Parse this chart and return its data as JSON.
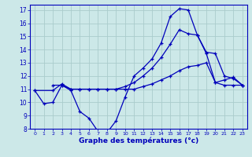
{
  "title": "Graphe des températures (°c)",
  "bg_color": "#cce8e8",
  "grid_color": "#aacccc",
  "line_color": "#0000bb",
  "xlim": [
    -0.5,
    23.5
  ],
  "ylim": [
    8,
    17.4
  ],
  "yticks": [
    8,
    9,
    10,
    11,
    12,
    13,
    14,
    15,
    16,
    17
  ],
  "xticks": [
    0,
    1,
    2,
    3,
    4,
    5,
    6,
    7,
    8,
    9,
    10,
    11,
    12,
    13,
    14,
    15,
    16,
    17,
    18,
    19,
    20,
    21,
    22,
    23
  ],
  "series": {
    "line1_x": [
      0,
      1,
      2,
      3,
      4,
      5,
      6,
      7,
      8,
      9,
      10,
      11,
      12,
      13,
      14,
      15,
      16,
      17,
      18,
      19,
      20,
      21,
      22,
      23
    ],
    "line1_y": [
      10.9,
      9.9,
      10.0,
      11.3,
      10.9,
      9.3,
      8.8,
      7.8,
      7.7,
      8.6,
      10.4,
      12.0,
      12.6,
      13.3,
      14.5,
      16.5,
      17.1,
      17.0,
      15.1,
      13.7,
      11.5,
      11.7,
      11.9,
      11.3
    ],
    "line2_x": [
      0,
      2,
      3,
      4,
      5,
      6,
      7,
      8,
      9,
      10,
      11,
      12,
      13,
      14,
      15,
      16,
      17,
      18,
      19,
      20,
      21,
      22,
      23
    ],
    "line2_y": [
      10.9,
      10.9,
      11.4,
      11.0,
      11.0,
      11.0,
      11.0,
      11.0,
      11.0,
      11.0,
      11.0,
      11.2,
      11.4,
      11.7,
      12.0,
      12.4,
      12.7,
      12.8,
      13.0,
      11.5,
      11.3,
      11.3,
      11.3
    ],
    "line3_x": [
      2,
      3,
      4,
      5,
      6,
      7,
      8,
      9,
      10,
      11,
      12,
      13,
      14,
      15,
      16,
      17,
      18,
      19,
      20,
      21,
      22,
      23
    ],
    "line3_y": [
      11.3,
      11.3,
      11.0,
      11.0,
      11.0,
      11.0,
      11.0,
      11.0,
      11.2,
      11.5,
      12.0,
      12.6,
      13.4,
      14.4,
      15.5,
      15.2,
      15.1,
      13.8,
      13.7,
      12.0,
      11.8,
      11.3
    ]
  }
}
